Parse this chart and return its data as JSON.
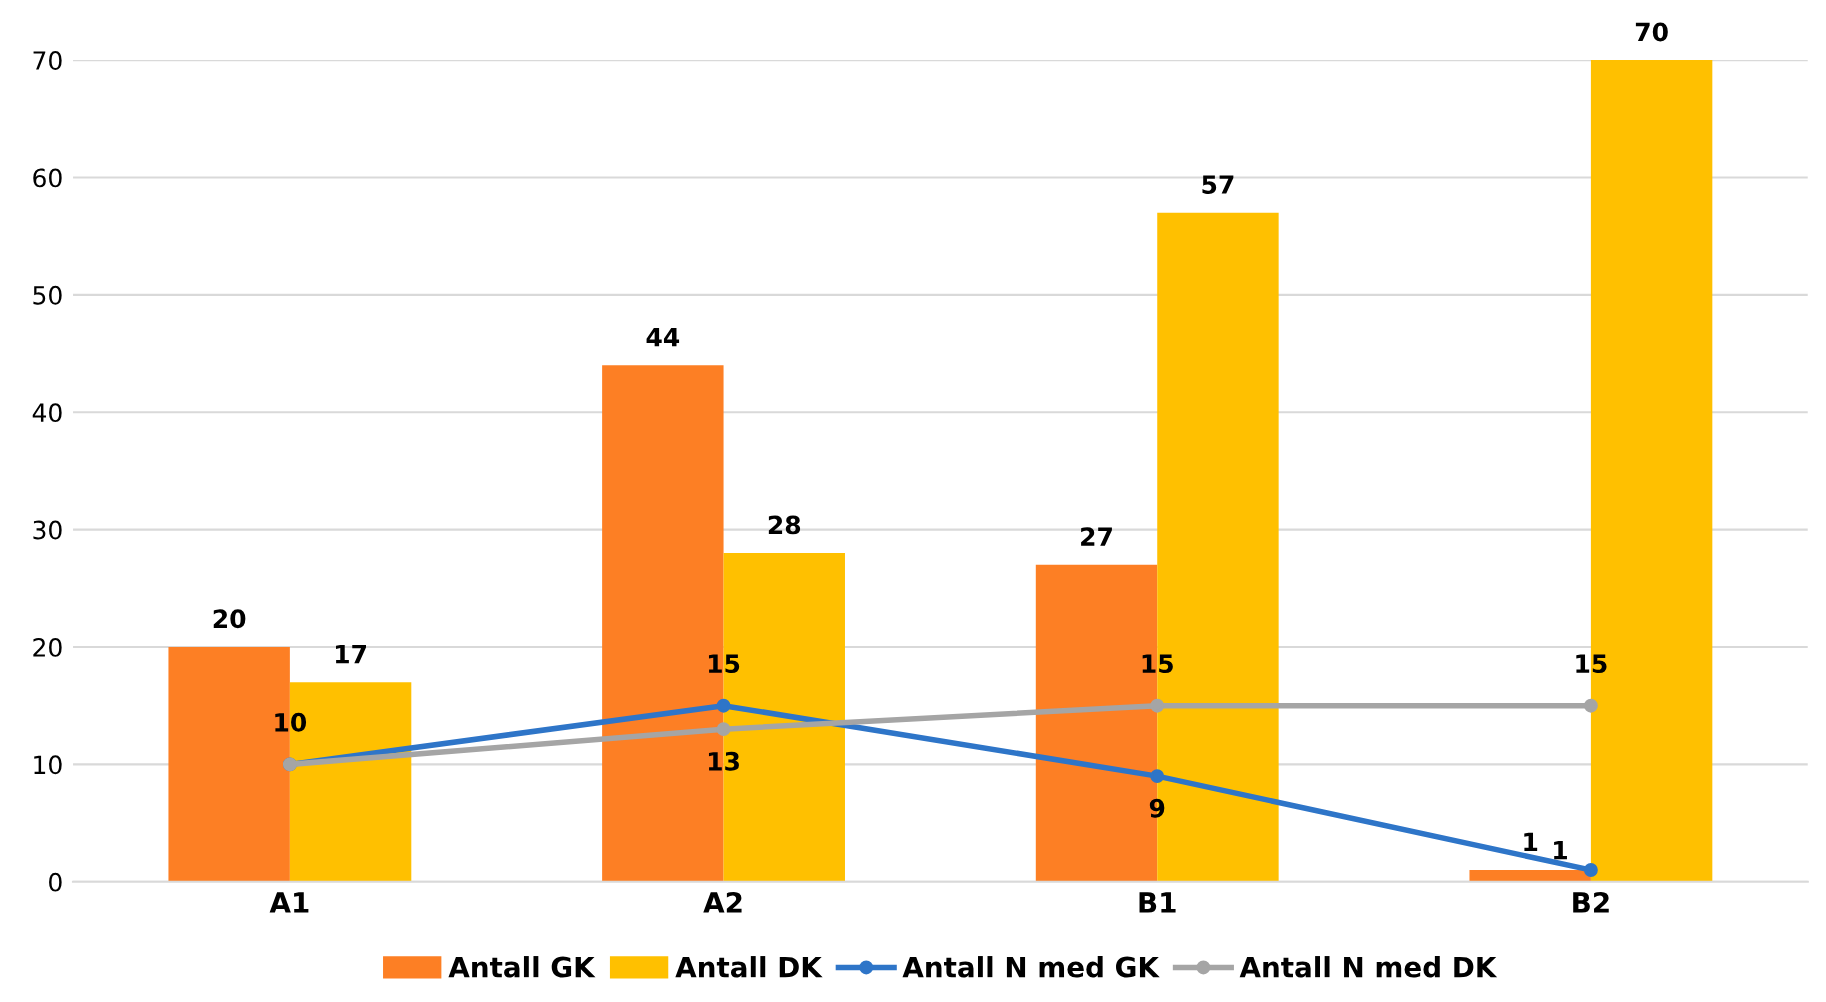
{
  "chart_data": {
    "type": "bar",
    "categories": [
      "A1",
      "A2",
      "B1",
      "B2"
    ],
    "series": [
      {
        "name": "Antall GK",
        "color": "#fd7f24",
        "values": [
          20,
          44,
          27,
          1
        ],
        "value_labels": [
          "20",
          "44",
          "27",
          "1"
        ]
      },
      {
        "name": "Antall DK",
        "color": "#ffc000",
        "values": [
          17,
          28,
          57,
          70
        ],
        "value_labels": [
          "17",
          "28",
          "57",
          "70"
        ]
      },
      {
        "name": "Antall N med GK",
        "type": "line",
        "color": "#2e75c8",
        "values": [
          10,
          15,
          9,
          1
        ],
        "value_labels": [
          "10",
          "15",
          "9",
          "1"
        ]
      },
      {
        "name": "Antall N med DK",
        "type": "line",
        "color": "#a5a5a5",
        "values": [
          10,
          13,
          15,
          15
        ],
        "value_labels": [
          null,
          "13",
          "15",
          "15"
        ]
      }
    ],
    "ylim": [
      0,
      70
    ],
    "yticks": [
      0,
      10,
      20,
      30,
      40,
      50,
      60,
      70
    ],
    "grid": "y",
    "legend": "bottom",
    "marker": "circle",
    "line_style": "solid"
  }
}
